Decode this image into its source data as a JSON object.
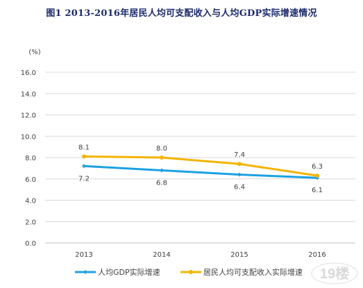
{
  "title": "图1    2013-2016年居民人均可支配收入与人均GDP实际增速情况",
  "watermark": "19楼",
  "chart_data": {
    "type": "line",
    "categories": [
      "2013",
      "2014",
      "2015",
      "2016"
    ],
    "ylim": [
      0,
      16
    ],
    "ytick_labels": [
      "0.0",
      "2.0",
      "4.0",
      "6.0",
      "8.0",
      "10.0",
      "12.0",
      "14.0",
      "16.0"
    ],
    "yunit": "(%)",
    "grid": true,
    "legend_position": "bottom",
    "series": [
      {
        "name": "人均GDP实际增速",
        "values": [
          7.2,
          6.8,
          6.4,
          6.1
        ],
        "labels": [
          "7.2",
          "6.8",
          "6.4",
          "6.1"
        ],
        "color": "#1ba1e2",
        "label_position": "below"
      },
      {
        "name": "居民人均可支配收入实际增速",
        "values": [
          8.1,
          8.0,
          7.4,
          6.3
        ],
        "labels": [
          "8.1",
          "8.0",
          "7.4",
          "6.3"
        ],
        "color": "#f5b400",
        "label_position": "above"
      }
    ]
  }
}
